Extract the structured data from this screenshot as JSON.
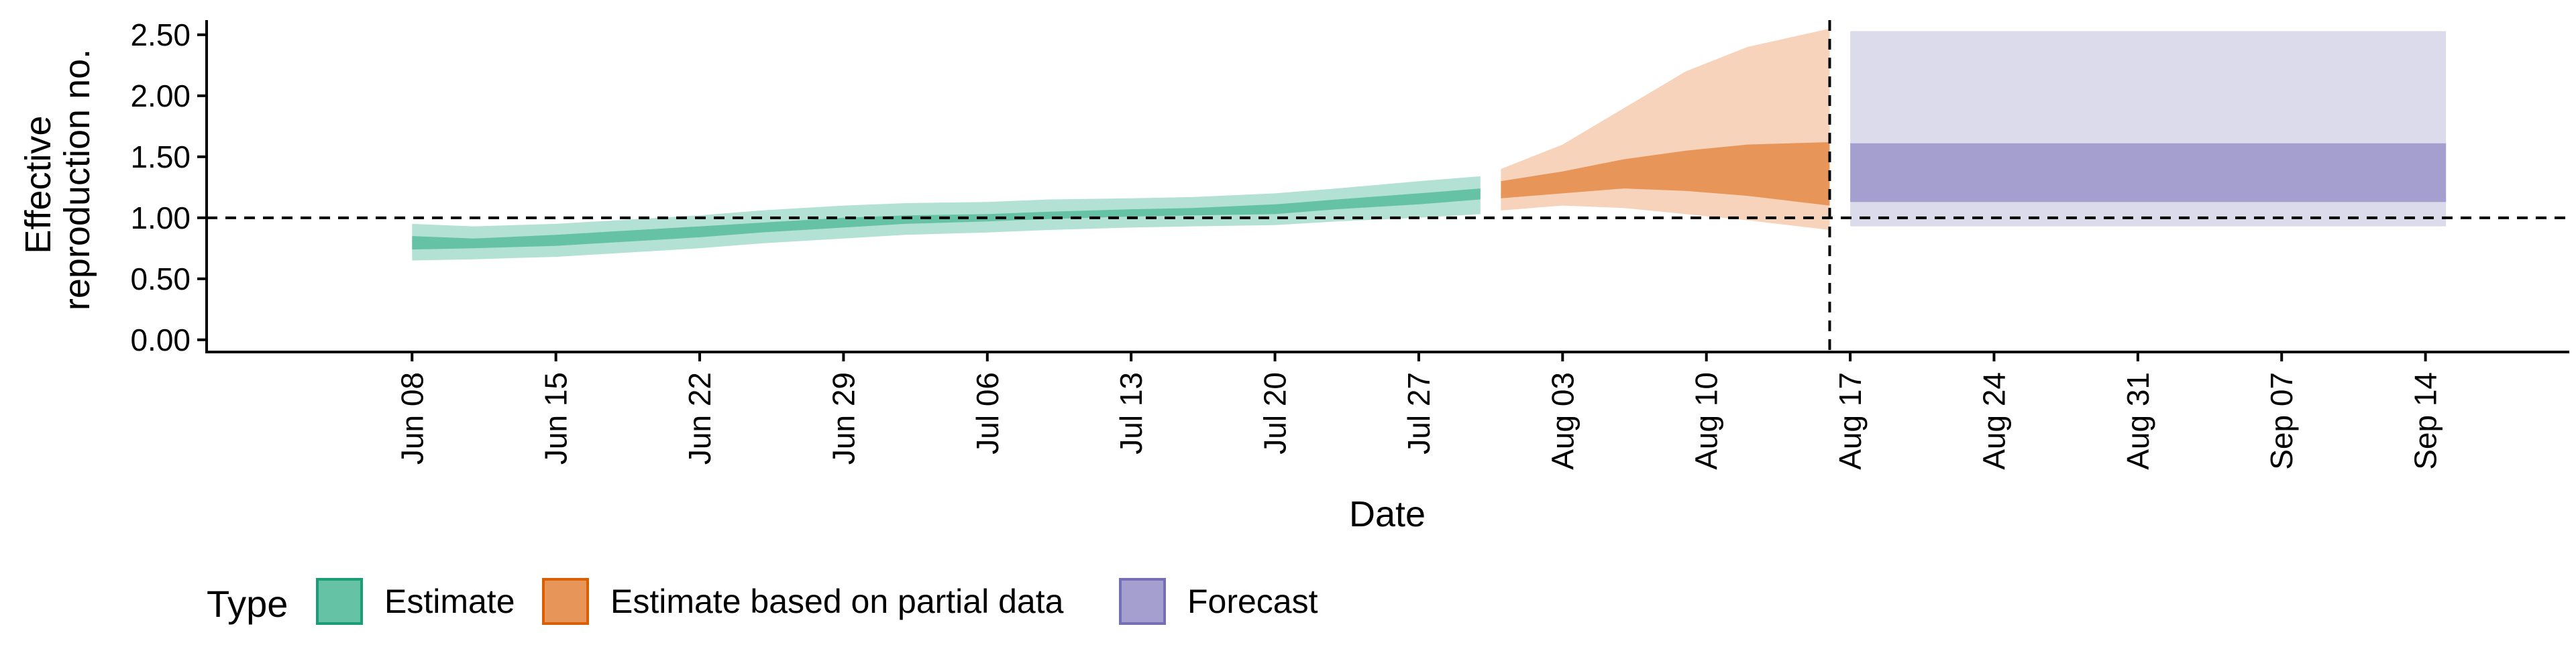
{
  "chart_data": {
    "type": "area",
    "title": "",
    "xlabel": "Date",
    "ylabel": [
      "Effective",
      "reproduction no."
    ],
    "x_ticks": [
      "Jun 08",
      "Jun 15",
      "Jun 22",
      "Jun 29",
      "Jul 06",
      "Jul 13",
      "Jul 20",
      "Jul 27",
      "Aug 03",
      "Aug 10",
      "Aug 17",
      "Aug 24",
      "Aug 31",
      "Sep 07",
      "Sep 14"
    ],
    "y_ticks": [
      "0.00",
      "0.50",
      "1.00",
      "1.50",
      "2.00",
      "2.50"
    ],
    "ylim": [
      -0.1,
      2.62
    ],
    "xlim": [
      "2020-05-29",
      "2020-09-21"
    ],
    "reference_lines": {
      "horizontal_y": 1.0,
      "vertical_date": "2020-08-16"
    },
    "grid": false,
    "legend": {
      "title": "Type",
      "position": "bottom",
      "items": [
        {
          "label": "Estimate",
          "fill": "#66c2a5",
          "border": "#1b9e77"
        },
        {
          "label": "Estimate based on partial data",
          "fill": "#e8955a",
          "border": "#d95f02"
        },
        {
          "label": "Forecast",
          "fill": "#a59fd0",
          "border": "#7570b3"
        }
      ]
    },
    "series": [
      {
        "name": "Estimate",
        "colors": {
          "outer": "#b3e2d4",
          "inner": "#66c2a5"
        },
        "x": [
          "2020-06-08",
          "2020-06-11",
          "2020-06-15",
          "2020-06-18",
          "2020-06-22",
          "2020-06-25",
          "2020-06-29",
          "2020-07-02",
          "2020-07-06",
          "2020-07-09",
          "2020-07-13",
          "2020-07-16",
          "2020-07-20",
          "2020-07-23",
          "2020-07-27",
          "2020-07-30"
        ],
        "outer_low": [
          0.65,
          0.66,
          0.68,
          0.71,
          0.75,
          0.79,
          0.83,
          0.86,
          0.88,
          0.9,
          0.92,
          0.93,
          0.94,
          0.97,
          1.0,
          1.03
        ],
        "inner_low": [
          0.74,
          0.75,
          0.77,
          0.8,
          0.84,
          0.88,
          0.92,
          0.95,
          0.97,
          0.99,
          1.01,
          1.02,
          1.03,
          1.07,
          1.11,
          1.15
        ],
        "inner_high": [
          0.85,
          0.83,
          0.86,
          0.89,
          0.93,
          0.96,
          1.0,
          1.02,
          1.03,
          1.05,
          1.07,
          1.08,
          1.11,
          1.15,
          1.2,
          1.24
        ],
        "outer_high": [
          0.95,
          0.93,
          0.95,
          0.98,
          1.02,
          1.06,
          1.1,
          1.12,
          1.13,
          1.15,
          1.16,
          1.17,
          1.2,
          1.24,
          1.3,
          1.34
        ]
      },
      {
        "name": "Estimate based on partial data",
        "colors": {
          "outer": "#f6d3ba",
          "inner": "#e8955a"
        },
        "x": [
          "2020-07-31",
          "2020-08-03",
          "2020-08-06",
          "2020-08-09",
          "2020-08-12",
          "2020-08-16"
        ],
        "outer_low": [
          1.06,
          1.1,
          1.08,
          1.03,
          0.98,
          0.9
        ],
        "inner_low": [
          1.16,
          1.2,
          1.24,
          1.22,
          1.18,
          1.1
        ],
        "inner_high": [
          1.3,
          1.38,
          1.48,
          1.55,
          1.6,
          1.62
        ],
        "outer_high": [
          1.4,
          1.6,
          1.9,
          2.2,
          2.4,
          2.55
        ]
      },
      {
        "name": "Forecast",
        "colors": {
          "outer": "#dcdbec",
          "inner": "#a59fd0"
        },
        "x": [
          "2020-08-17",
          "2020-09-15"
        ],
        "outer_low": [
          0.93,
          0.93
        ],
        "inner_low": [
          1.13,
          1.13
        ],
        "inner_high": [
          1.61,
          1.61
        ],
        "outer_high": [
          2.53,
          2.53
        ]
      }
    ]
  }
}
